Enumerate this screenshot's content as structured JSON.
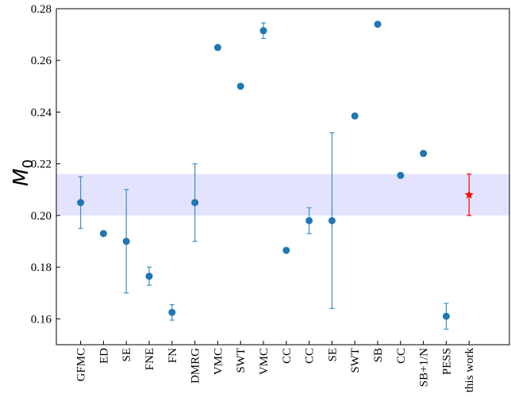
{
  "chart_data": {
    "type": "scatter",
    "ylabel": "M",
    "ylabel_subscript": "0",
    "ylim": [
      0.15,
      0.28
    ],
    "yticks": [
      0.16,
      0.18,
      0.2,
      0.22,
      0.24,
      0.26,
      0.28
    ],
    "ytick_labels": [
      "0.16",
      "0.18",
      "0.20",
      "0.22",
      "0.24",
      "0.26",
      "0.28"
    ],
    "categories": [
      "GFMC",
      "ED",
      "SE",
      "FNE",
      "FN",
      "DMRG",
      "VMC",
      "SWT",
      "VMC",
      "CC",
      "CC",
      "SE",
      "SWT",
      "SB",
      "CC",
      "SB+1/N",
      "PESS",
      "this work"
    ],
    "series": [
      {
        "values": [
          0.205,
          0.193,
          0.19,
          0.1765,
          0.1625,
          0.205,
          0.265,
          0.25,
          0.2715,
          0.1865,
          0.198,
          0.198,
          0.2385,
          0.274,
          0.2155,
          0.224,
          0.161,
          0.208
        ],
        "err_low": [
          0.01,
          0,
          0.02,
          0.0035,
          0.003,
          0.015,
          0,
          0,
          0.003,
          0,
          0.005,
          0.034,
          0,
          0,
          0,
          0,
          0.005,
          0.008
        ],
        "err_high": [
          0.01,
          0,
          0.02,
          0.0035,
          0.003,
          0.015,
          0,
          0,
          0.003,
          0,
          0.005,
          0.034,
          0,
          0,
          0,
          0,
          0.005,
          0.008
        ],
        "highlight_index": 17
      }
    ],
    "band": {
      "low": 0.2,
      "high": 0.216
    },
    "colors": {
      "marker": "#1f77b4",
      "errorbar": "#3d8fc6",
      "highlight": "#ff0000",
      "band": "#e3e3ff"
    },
    "grid": false,
    "legend": "none"
  }
}
